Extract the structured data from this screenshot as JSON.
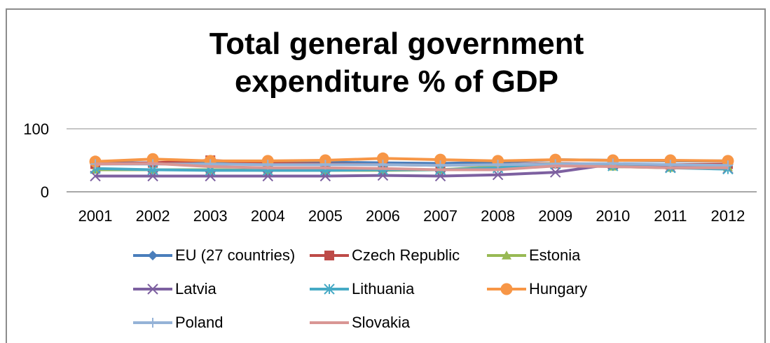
{
  "chart_data": {
    "type": "line",
    "title": "Total general government expenditure % of GDP",
    "title_lines": [
      "Total general government",
      "expenditure % of GDP"
    ],
    "xlabel": "",
    "ylabel": "",
    "categories": [
      "2001",
      "2002",
      "2003",
      "2004",
      "2005",
      "2006",
      "2007",
      "2008",
      "2009",
      "2010",
      "2011",
      "2012"
    ],
    "ylim": [
      0,
      100
    ],
    "yticks": [
      0,
      100
    ],
    "grid": "horizontal",
    "legend_position": "bottom",
    "series": [
      {
        "name": "EU (27 countries)",
        "color": "#4a7ebb",
        "marker": "diamond",
        "values": [
          46,
          46,
          47,
          47,
          47,
          46,
          45,
          47,
          51,
          50,
          49,
          49
        ]
      },
      {
        "name": "Czech Republic",
        "color": "#be4b48",
        "marker": "square",
        "values": [
          44,
          46,
          50,
          45,
          44,
          43,
          42,
          43,
          45,
          44,
          43,
          44
        ]
      },
      {
        "name": "Estonia",
        "color": "#98b954",
        "marker": "triangle",
        "values": [
          35,
          35,
          35,
          34,
          34,
          34,
          35,
          40,
          45,
          40,
          38,
          39
        ]
      },
      {
        "name": "Latvia",
        "color": "#7d60a0",
        "marker": "x",
        "values": [
          25,
          25,
          25,
          25,
          25,
          26,
          25,
          27,
          31,
          44,
          39,
          37
        ]
      },
      {
        "name": "Lithuania",
        "color": "#46aac5",
        "marker": "asterisk",
        "values": [
          37,
          35,
          34,
          34,
          34,
          35,
          35,
          38,
          44,
          41,
          38,
          36
        ]
      },
      {
        "name": "Hungary",
        "color": "#f79646",
        "marker": "circle",
        "values": [
          48,
          52,
          49,
          49,
          50,
          53,
          51,
          49,
          51,
          50,
          50,
          49
        ]
      },
      {
        "name": "Poland",
        "color": "#95b3d7",
        "marker": "plus",
        "values": [
          44,
          44,
          44,
          43,
          43,
          43,
          42,
          43,
          44,
          45,
          43,
          42
        ]
      },
      {
        "name": "Slovakia",
        "color": "#d99694",
        "marker": "none",
        "values": [
          44,
          45,
          40,
          38,
          38,
          37,
          35,
          35,
          41,
          40,
          38,
          38
        ]
      }
    ]
  }
}
